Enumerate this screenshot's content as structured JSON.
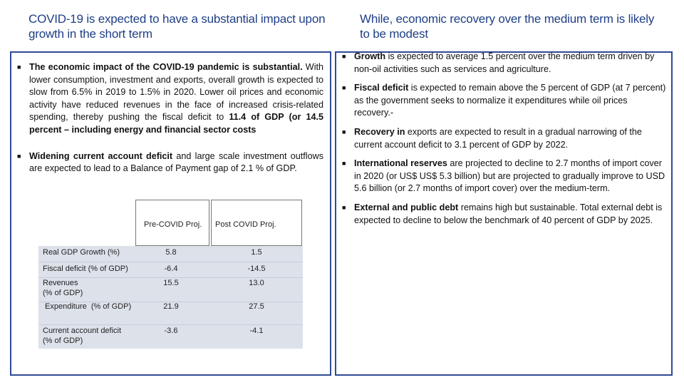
{
  "left_heading": "COVID-19 is expected to have a substantial impact upon growth in the short term",
  "right_heading": "While, economic recovery over the medium term is likely to be modest",
  "left_bullets": [
    {
      "bold": "The economic impact of the COVID-19 pandemic is substantial.",
      "text_a": " With lower consumption, investment and exports, overall growth is expected to slow from 6.5% in 2019 to 1.5% in 2020. Lower oil prices and economic activity have reduced revenues in the face of increased crisis-related spending, thereby pushing the fiscal deficit to ",
      "bold_b": "11.4 of GDP (or 14.5 percent – including energy and financial sector costs",
      "text_b": ""
    },
    {
      "bold": "Widening current account deficit",
      "text_a": " and large scale investment outflows are expected to lead to a Balance of Payment gap of 2.1 % of GDP."
    }
  ],
  "right_bullets": [
    {
      "bold": "Growth",
      "text": " is expected to average 1.5 percent over the medium term driven by non-oil activities such as services and agriculture."
    },
    {
      "bold": "Fiscal deficit",
      "text": " is expected to remain above the 5 percent of GDP (at 7 percent) as the government seeks to normalize it expenditures while oil prices recovery.-"
    },
    {
      "bold": "Recovery in",
      "text": " exports are expected to result in a gradual narrowing of the current account deficit to 3.1 percent of GDP by 2022."
    },
    {
      "bold": "International reserves",
      "text": " are projected to decline to 2.7 months of import cover in 2020 (or US$ US$ 5.3 billion) but are projected to gradually improve to USD 5.6 billion (or 2.7 months of import cover) over the medium-term."
    },
    {
      "bold": "External and public debt",
      "text": " remains high but sustainable. Total external debt is expected to decline to below the benchmark of 40 percent of GDP by 2025."
    }
  ],
  "table": {
    "headers": [
      "Pre-COVID Proj.",
      "Post COVID Proj."
    ],
    "rows": [
      {
        "label": "Real GDP Growth (%)",
        "pre": "5.8",
        "post": "1.5"
      },
      {
        "label": "Fiscal deficit (% of GDP)",
        "pre": "-6.4",
        "post": "-14.5"
      },
      {
        "label": "Revenues (% of GDP)",
        "label_line1": "Revenues",
        "label_line2": "(% of GDP)",
        "pre": "15.5",
        "post": "13.0"
      },
      {
        "label": " Expenditure  (% of GDP)",
        "pre": "21.9",
        "post": "27.5"
      },
      {
        "label": "Current account deficit (% of GDP)",
        "label_line1": "Current account deficit",
        "label_line2": "(% of GDP)",
        "pre": "-3.6",
        "post": "-4.1"
      }
    ]
  }
}
